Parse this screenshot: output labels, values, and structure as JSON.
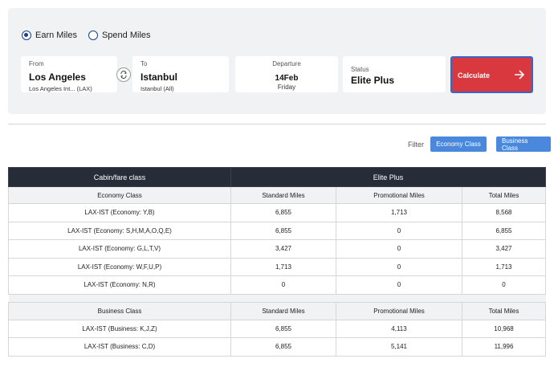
{
  "mode": {
    "earn_label": "Earn Miles",
    "spend_label": "Spend Miles",
    "selected": "earn"
  },
  "from": {
    "label": "From",
    "city": "Los Angeles",
    "airport": "Los Angeles Int... (LAX)"
  },
  "to": {
    "label": "To",
    "city": "Istanbul",
    "airport": "Istanbul (All)"
  },
  "departure": {
    "label": "Departure",
    "date": "14Feb",
    "weekday": "Friday"
  },
  "status": {
    "label": "Status",
    "value": "Elite Plus"
  },
  "calculate": {
    "label": "Calculate",
    "icon": "arrow-right-icon"
  },
  "colors": {
    "primary": "#1d3f8f",
    "calculate_bg": "#d9383e",
    "filter_bg": "#4a88de",
    "table_header_bg": "#262d39"
  },
  "filter": {
    "label": "Filter",
    "economy_label": "Economy Class",
    "business_label": "Business Class"
  },
  "table": {
    "header": {
      "cabin": "Cabin/fare class",
      "status": "Elite Plus"
    },
    "economy": {
      "title": "Economy Class",
      "cols": [
        "Standard Miles",
        "Promotional Miles",
        "Total Miles"
      ],
      "rows": [
        {
          "fare": "LAX-IST (Economy: Y,B)",
          "standard": "6,855",
          "promo": "1,713",
          "total": "8,568"
        },
        {
          "fare": "LAX-IST (Economy: S,H,M,A,O,Q,E)",
          "standard": "6,855",
          "promo": "0",
          "total": "6,855"
        },
        {
          "fare": "LAX-IST (Economy: G,L,T,V)",
          "standard": "3,427",
          "promo": "0",
          "total": "3,427"
        },
        {
          "fare": "LAX-IST (Economy: W,F,U,P)",
          "standard": "1,713",
          "promo": "0",
          "total": "1,713"
        },
        {
          "fare": "LAX-IST (Economy: N,R)",
          "standard": "0",
          "promo": "0",
          "total": "0"
        }
      ]
    },
    "business": {
      "title": "Business Class",
      "cols": [
        "Standard Miles",
        "Promotional Miles",
        "Total Miles"
      ],
      "rows": [
        {
          "fare": "LAX-IST (Business: K,J,Z)",
          "standard": "6,855",
          "promo": "4,113",
          "total": "10,968"
        },
        {
          "fare": "LAX-IST (Business: C,D)",
          "standard": "6,855",
          "promo": "5,141",
          "total": "11,996"
        }
      ]
    }
  }
}
